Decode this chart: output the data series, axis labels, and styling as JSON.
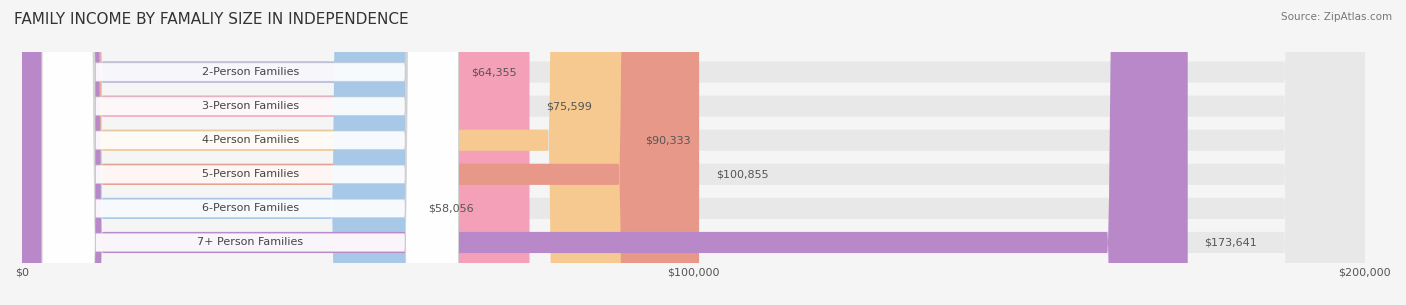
{
  "title": "FAMILY INCOME BY FAMALIY SIZE IN INDEPENDENCE",
  "source": "Source: ZipAtlas.com",
  "categories": [
    "2-Person Families",
    "3-Person Families",
    "4-Person Families",
    "5-Person Families",
    "6-Person Families",
    "7+ Person Families"
  ],
  "values": [
    64355,
    75599,
    90333,
    100855,
    58056,
    173641
  ],
  "bar_colors": [
    "#a8a8d8",
    "#f4a0b8",
    "#f5c990",
    "#e89888",
    "#a8c8e8",
    "#b888c8"
  ],
  "label_colors": [
    "#a8a8d8",
    "#f4a0b8",
    "#f5c990",
    "#e89888",
    "#a8c8e8",
    "#b888c8"
  ],
  "value_labels": [
    "$64,355",
    "$75,599",
    "$90,333",
    "$100,855",
    "$58,056",
    "$173,641"
  ],
  "xlim": [
    0,
    200000
  ],
  "xticks": [
    0,
    100000,
    200000
  ],
  "xtick_labels": [
    "$0",
    "$100,000",
    "$200,000"
  ],
  "bg_color": "#f5f5f5",
  "bar_bg_color": "#e8e8e8",
  "title_fontsize": 11,
  "label_fontsize": 8,
  "value_fontsize": 8,
  "source_fontsize": 7.5
}
